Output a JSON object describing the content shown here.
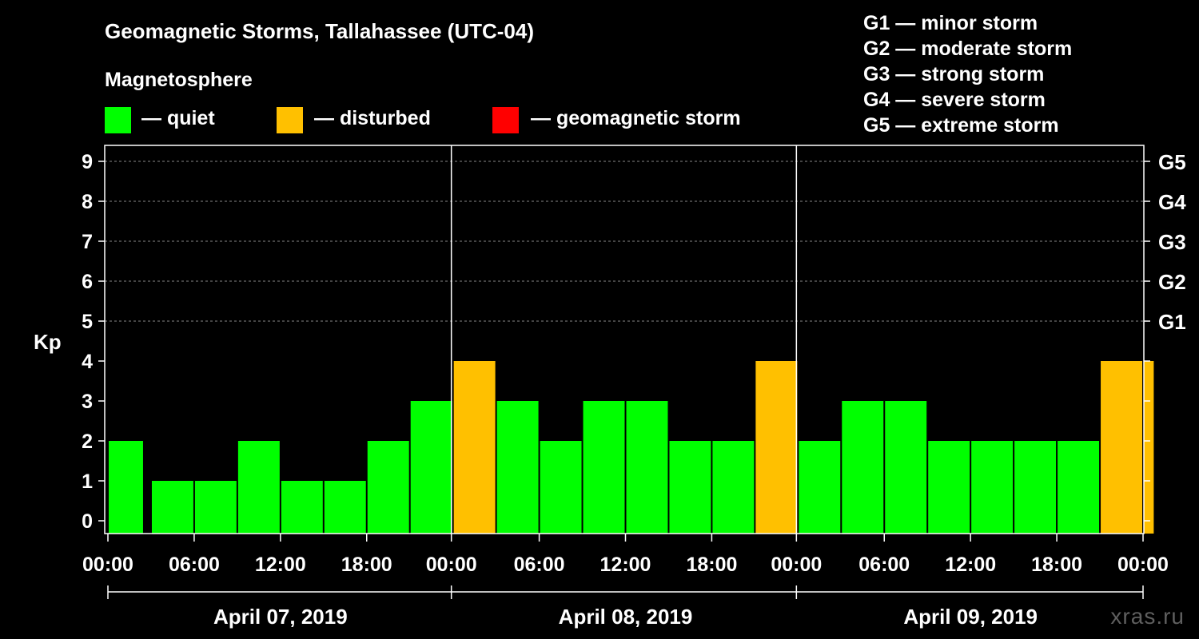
{
  "chart_data": {
    "type": "bar",
    "title": "Geomagnetic Storms, Tallahassee (UTC-04)",
    "ylabel": "Kp",
    "ylim": [
      0,
      9
    ],
    "yticks": [
      "0",
      "1",
      "2",
      "3",
      "4",
      "5",
      "6",
      "7",
      "8",
      "9"
    ],
    "right_ticks": [
      {
        "kp": 5,
        "label": "G1"
      },
      {
        "kp": 6,
        "label": "G2"
      },
      {
        "kp": 7,
        "label": "G3"
      },
      {
        "kp": 8,
        "label": "G4"
      },
      {
        "kp": 9,
        "label": "G5"
      }
    ],
    "xticks": [
      "00:00",
      "06:00",
      "12:00",
      "18:00",
      "00:00",
      "06:00",
      "12:00",
      "18:00",
      "00:00",
      "06:00",
      "12:00",
      "18:00",
      "00:00"
    ],
    "x_hours_range": [
      0,
      72
    ],
    "days": [
      "April 07, 2019",
      "April 08, 2019",
      "April 09, 2019"
    ],
    "bars": [
      {
        "start": 0,
        "end": 2.5,
        "kp": 2
      },
      {
        "start": 3,
        "end": 6,
        "kp": 1
      },
      {
        "start": 6,
        "end": 9,
        "kp": 1
      },
      {
        "start": 9,
        "end": 12,
        "kp": 2
      },
      {
        "start": 12,
        "end": 15,
        "kp": 1
      },
      {
        "start": 15,
        "end": 18,
        "kp": 1
      },
      {
        "start": 18,
        "end": 21,
        "kp": 2
      },
      {
        "start": 21,
        "end": 24,
        "kp": 3
      },
      {
        "start": 24,
        "end": 27,
        "kp": 4
      },
      {
        "start": 27,
        "end": 30,
        "kp": 3
      },
      {
        "start": 30,
        "end": 33,
        "kp": 2
      },
      {
        "start": 33,
        "end": 36,
        "kp": 3
      },
      {
        "start": 36,
        "end": 39,
        "kp": 3
      },
      {
        "start": 39,
        "end": 42,
        "kp": 2
      },
      {
        "start": 42,
        "end": 45,
        "kp": 2
      },
      {
        "start": 45,
        "end": 48,
        "kp": 4
      },
      {
        "start": 48,
        "end": 51,
        "kp": 2
      },
      {
        "start": 51,
        "end": 54,
        "kp": 3
      },
      {
        "start": 54,
        "end": 57,
        "kp": 3
      },
      {
        "start": 57,
        "end": 60,
        "kp": 2
      },
      {
        "start": 60,
        "end": 63,
        "kp": 2
      },
      {
        "start": 63,
        "end": 66,
        "kp": 2
      },
      {
        "start": 66,
        "end": 69,
        "kp": 2
      },
      {
        "start": 69,
        "end": 72,
        "kp": 4
      },
      {
        "start": 72,
        "end": 72.8,
        "kp": 4
      }
    ]
  },
  "magnetosphere": {
    "title": "Magnetosphere",
    "legend": [
      {
        "label": "— quiet",
        "color": "#00ff00"
      },
      {
        "label": "— disturbed",
        "color": "#ffc000"
      },
      {
        "label": "— geomagnetic storm",
        "color": "#ff0000"
      }
    ]
  },
  "storm_scale": [
    "G1 — minor storm",
    "G2 — moderate storm",
    "G3 — strong storm",
    "G4 — severe storm",
    "G5 — extreme storm"
  ],
  "colors": {
    "quiet": "#00ff00",
    "disturbed": "#ffc000",
    "storm": "#ff0000",
    "grid": "#888888"
  },
  "watermark": "xras.ru"
}
